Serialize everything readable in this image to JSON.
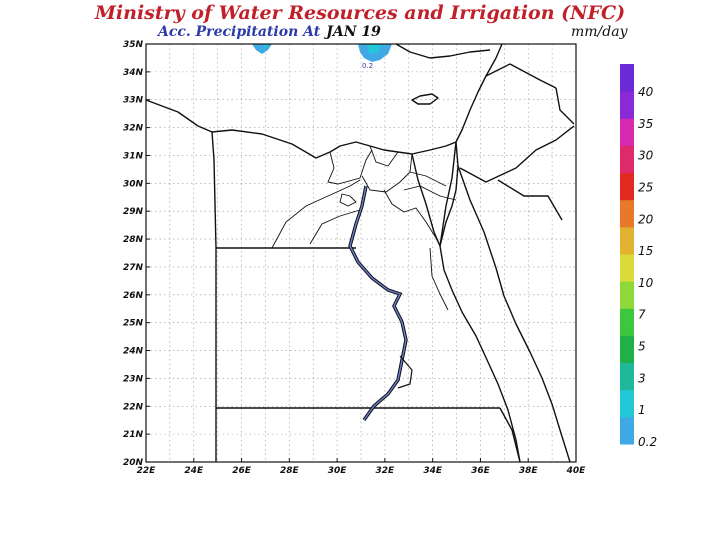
{
  "title": "Ministry of Water Resources and Irrigation (NFC)",
  "subtitle": "Acc. Precipitation  At",
  "date": "JAN 19",
  "units": "mm/day",
  "map": {
    "lon_ticks": [
      "22E",
      "24E",
      "26E",
      "28E",
      "30E",
      "32E",
      "34E",
      "36E",
      "38E",
      "40E"
    ],
    "lat_ticks": [
      "20N",
      "21N",
      "22N",
      "23N",
      "24N",
      "25N",
      "26N",
      "27N",
      "28N",
      "29N",
      "30N",
      "31N",
      "32N",
      "33N",
      "34N",
      "35N"
    ],
    "lon_range": [
      22,
      40
    ],
    "lat_range": [
      20,
      35
    ],
    "grid": true,
    "precip_label": "0.2"
  },
  "colorbar": {
    "levels": [
      "0.2",
      "1",
      "3",
      "5",
      "7",
      "10",
      "15",
      "20",
      "25",
      "30",
      "35",
      "40"
    ],
    "colors": [
      "#3fa9e6",
      "#22c8d8",
      "#1fb89a",
      "#20b04a",
      "#3cc83c",
      "#8ed83a",
      "#dada3a",
      "#e2b330",
      "#e8782a",
      "#e02a20",
      "#de2a6a",
      "#d62ab0",
      "#8a2ad6",
      "#6a2ad6"
    ]
  }
}
